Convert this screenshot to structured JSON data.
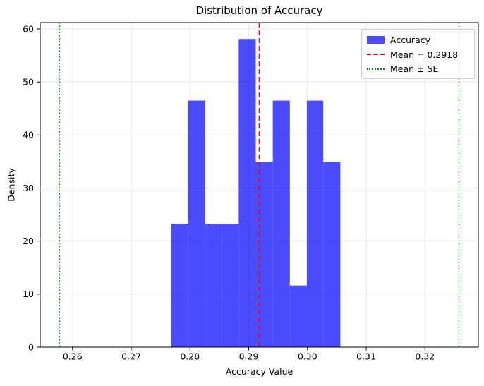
{
  "chart_data": {
    "type": "bar",
    "subtype": "histogram",
    "title": "Distribution of Accuracy",
    "xlabel": "Accuracy Value",
    "ylabel": "Density",
    "xlim": [
      0.2545,
      0.3291
    ],
    "ylim": [
      0,
      61.2
    ],
    "x_ticks": [
      0.26,
      0.27,
      0.28,
      0.29,
      0.3,
      0.31,
      0.32
    ],
    "y_ticks": [
      0,
      10,
      20,
      30,
      40,
      50,
      60
    ],
    "grid": true,
    "bin_edges": [
      0.2768,
      0.2797,
      0.2826,
      0.2854,
      0.2883,
      0.2912,
      0.2941,
      0.297,
      0.2999,
      0.3027,
      0.3056
    ],
    "densities": [
      23.25,
      46.49,
      23.25,
      23.25,
      58.11,
      34.87,
      46.49,
      11.62,
      46.49,
      34.87
    ],
    "mean": 0.2918,
    "mean_minus_se": 0.2578,
    "mean_plus_se": 0.3258,
    "legend": [
      {
        "label": "Accuracy",
        "marker": "patch",
        "color": "#0000ff"
      },
      {
        "label": "Mean = 0.2918",
        "marker": "dashed-line",
        "color": "#ff0000"
      },
      {
        "label": "Mean ± SE",
        "marker": "dotted-line",
        "color": "#008000"
      }
    ],
    "legend_position": "upper right",
    "colors": {
      "bar_fill": "#0000ff",
      "bar_opacity": 0.7,
      "mean_line": "#ff0000",
      "se_line": "#008000",
      "grid_line": "#e3e3e3",
      "spine": "#000000",
      "background": "#ffffff"
    }
  }
}
